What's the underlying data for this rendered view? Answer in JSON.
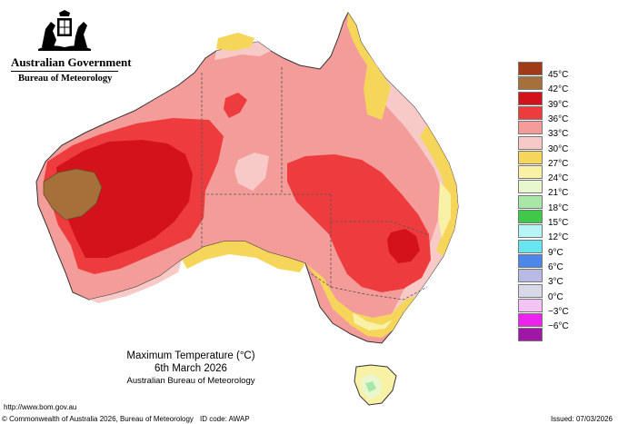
{
  "header": {
    "government": "Australian Government",
    "bureau": "Bureau of Meteorology"
  },
  "caption": {
    "title": "Maximum Temperature (°C)",
    "date": "6th March 2026",
    "organisation": "Australian Bureau of Meteorology"
  },
  "legend": {
    "items": [
      {
        "label": "45°C",
        "color": "#a13a17"
      },
      {
        "label": "42°C",
        "color": "#a6703a"
      },
      {
        "label": "39°C",
        "color": "#d3121b"
      },
      {
        "label": "36°C",
        "color": "#ee3c3e"
      },
      {
        "label": "33°C",
        "color": "#f39c99"
      },
      {
        "label": "30°C",
        "color": "#f7cac7"
      },
      {
        "label": "27°C",
        "color": "#f5d65a"
      },
      {
        "label": "24°C",
        "color": "#f8f1a6"
      },
      {
        "label": "21°C",
        "color": "#e9f7cf"
      },
      {
        "label": "18°C",
        "color": "#a9e7a9"
      },
      {
        "label": "15°C",
        "color": "#3ec94a"
      },
      {
        "label": "12°C",
        "color": "#b6f5f5"
      },
      {
        "label": "9°C",
        "color": "#69e5f1"
      },
      {
        "label": "6°C",
        "color": "#4b86e8"
      },
      {
        "label": "3°C",
        "color": "#b9b9e6"
      },
      {
        "label": "0°C",
        "color": "#d8d8e8"
      },
      {
        "label": "−3°C",
        "color": "#f4c3f4"
      },
      {
        "label": "−6°C",
        "color": "#ee22ee"
      },
      {
        "label": "",
        "color": "#a016a6"
      }
    ]
  },
  "footer": {
    "url": "http://www.bom.gov.au",
    "copyright": "© Commonwealth of Australia 2026, Bureau of Meteorology",
    "id_code": "ID code: AWAP",
    "issued": "Issued: 07/03/2026"
  }
}
